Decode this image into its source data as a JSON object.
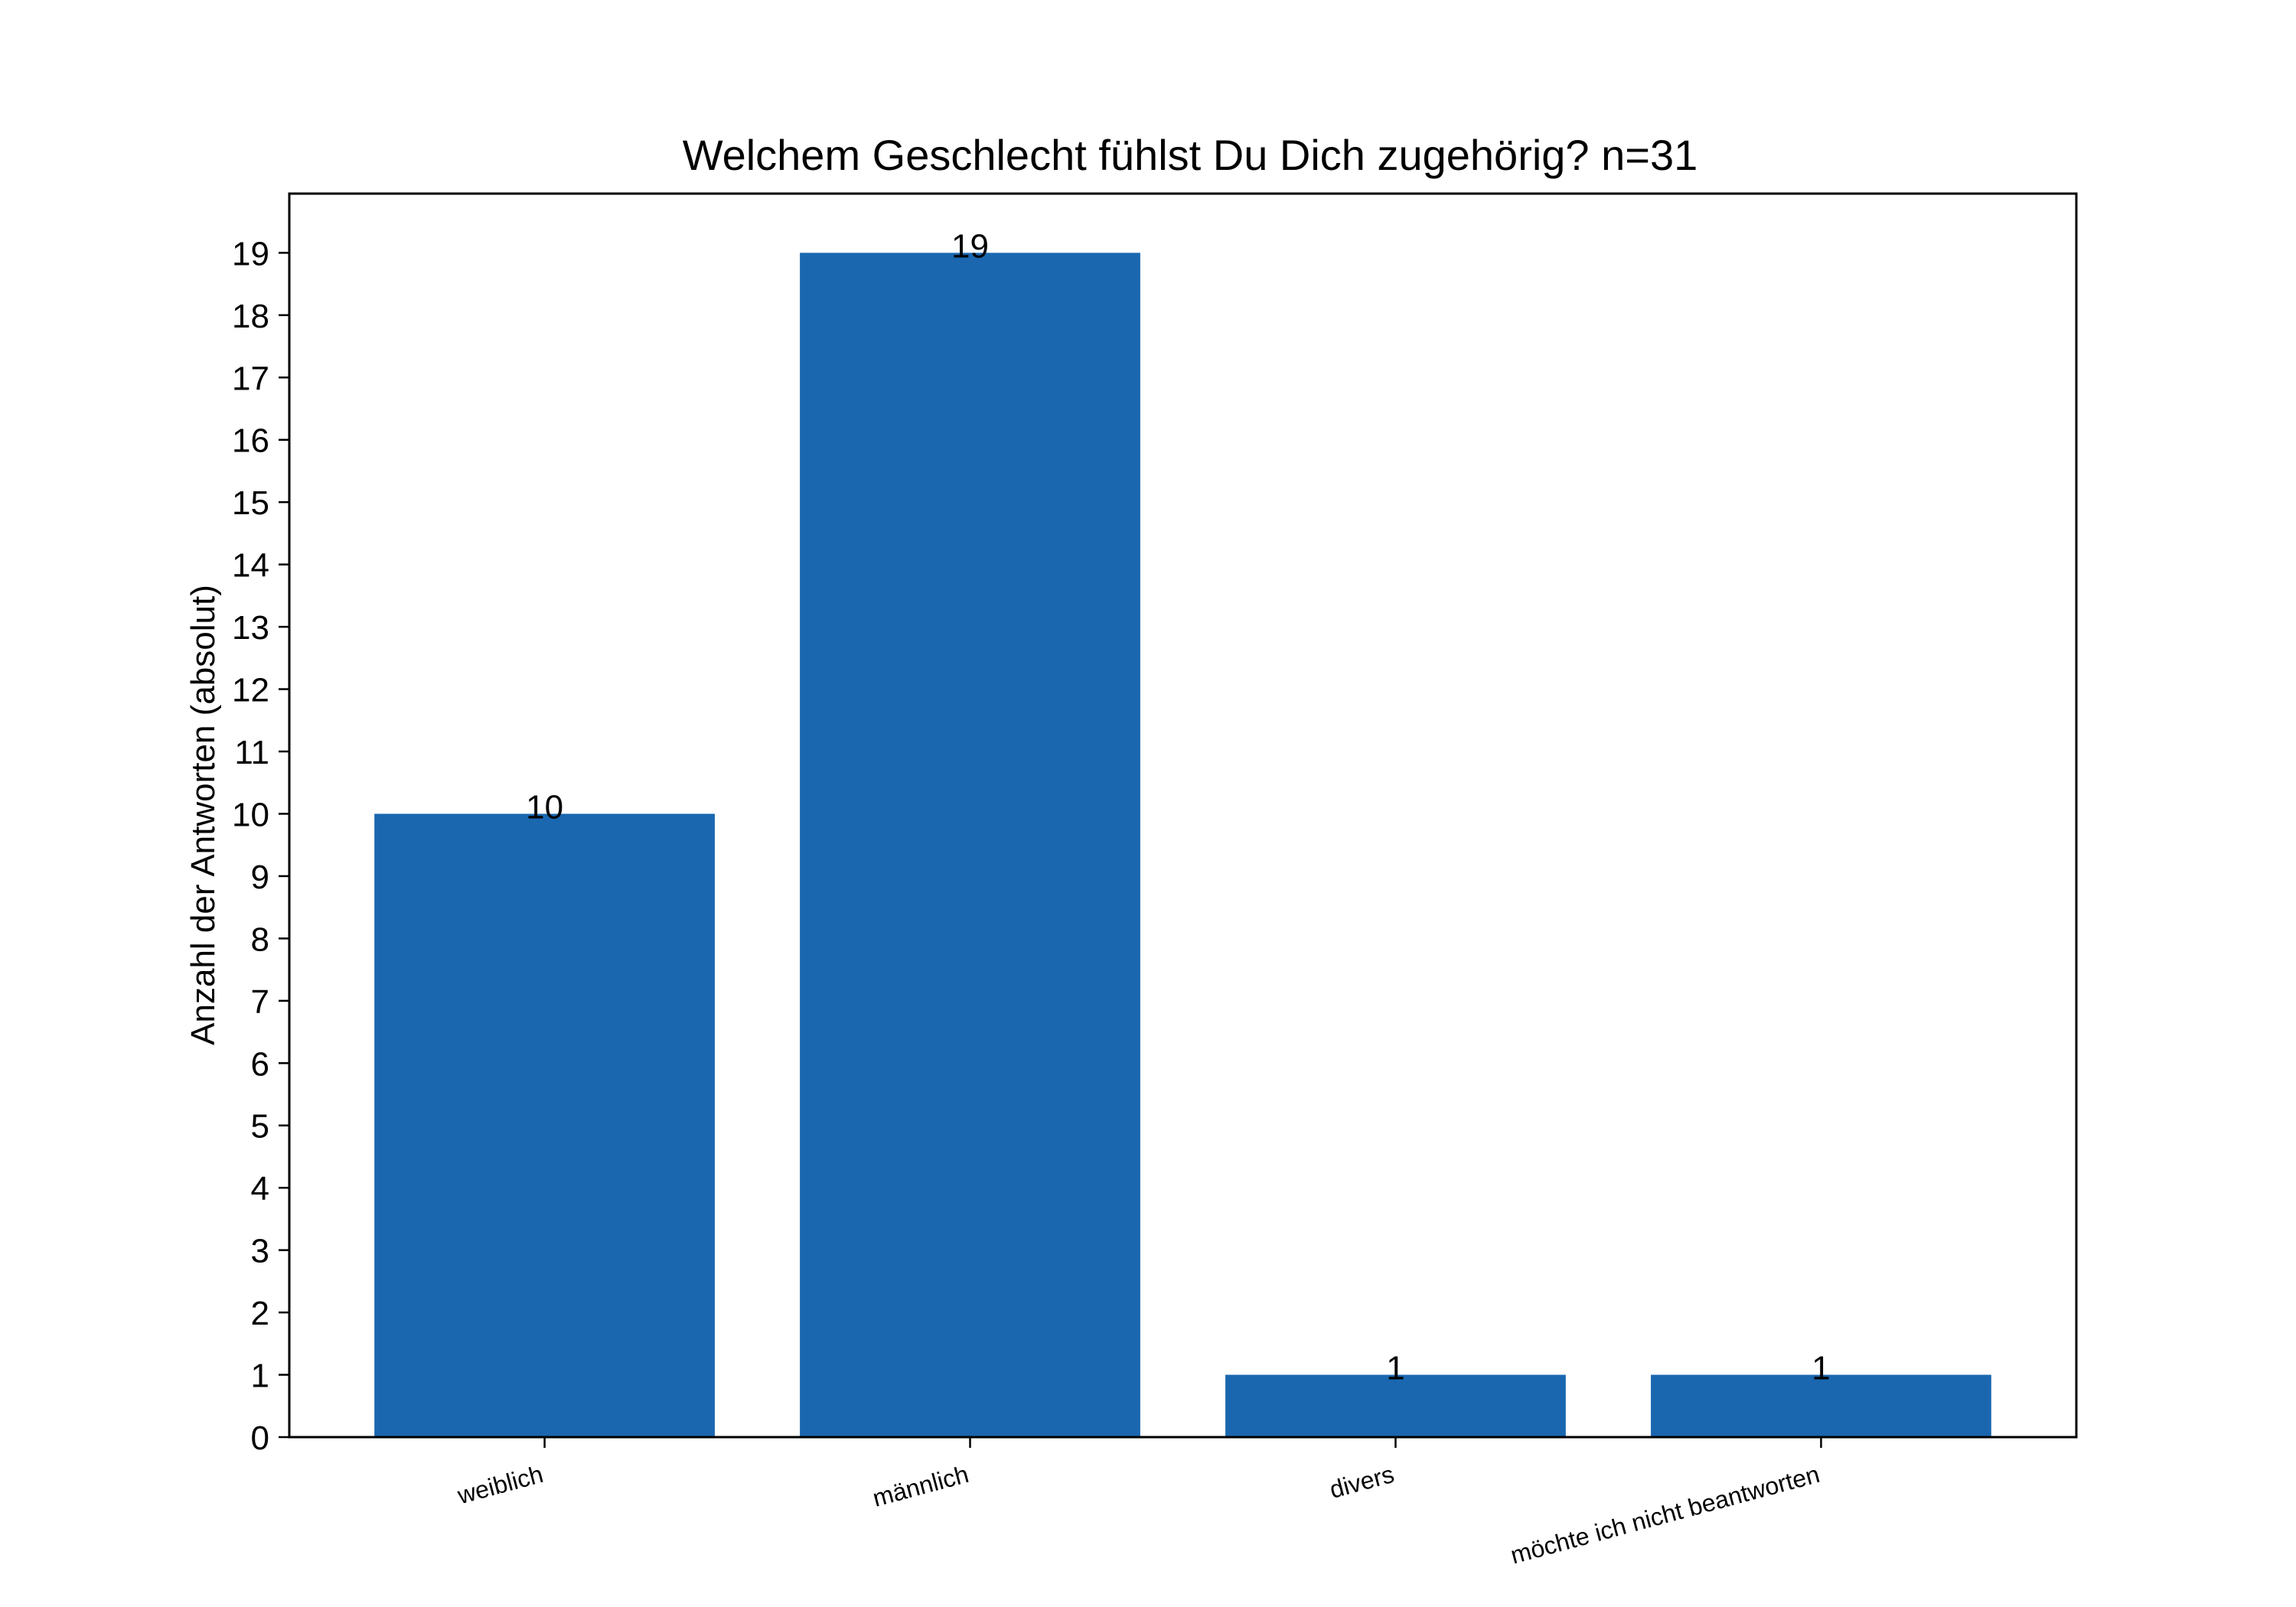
{
  "chart_data": {
    "type": "bar",
    "title": "Welchem Geschlecht fühlst Du Dich zugehörig? n=31",
    "xlabel": "",
    "ylabel": "Anzahl der Antworten (absolut)",
    "categories": [
      "weiblich",
      "männlich",
      "divers",
      "möchte ich nicht beantworten"
    ],
    "values": [
      10,
      19,
      1,
      1
    ],
    "data_labels": [
      "10",
      "19",
      "1",
      "1"
    ],
    "yticks": [
      0,
      1,
      2,
      3,
      4,
      5,
      6,
      7,
      8,
      9,
      10,
      11,
      12,
      13,
      14,
      15,
      16,
      17,
      18,
      19
    ],
    "ylim": [
      0,
      19.95
    ],
    "grid": false,
    "bar_color": "#1a67b0"
  }
}
